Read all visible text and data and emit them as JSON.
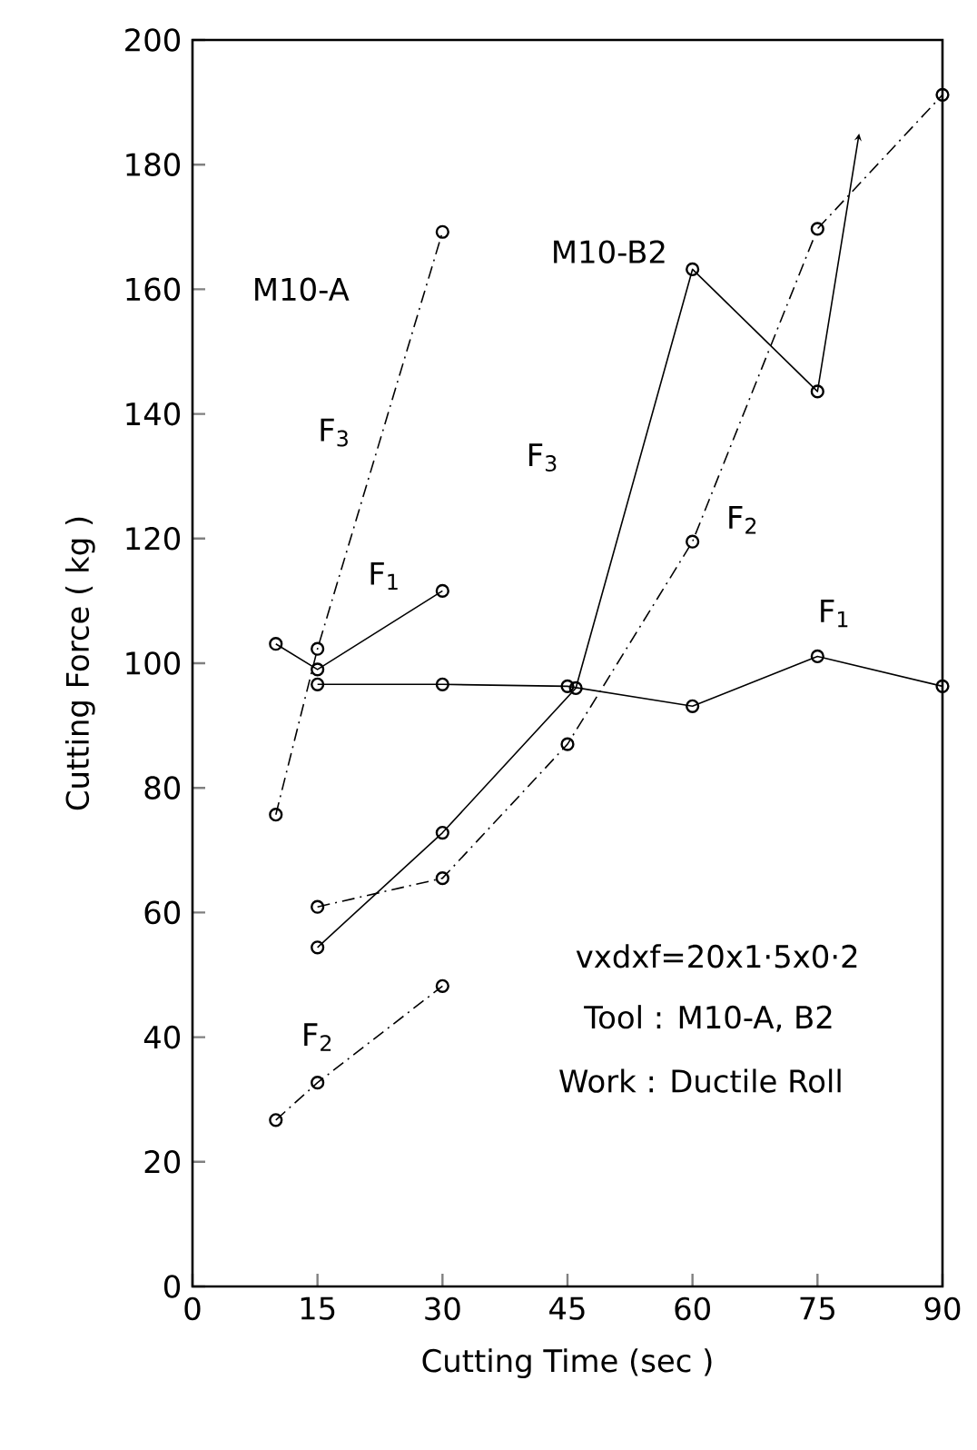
{
  "chart_data": {
    "type": "line",
    "xlabel": "Cutting Time (sec )",
    "ylabel": "Cutting Force ( kg )",
    "xlim": [
      0,
      90
    ],
    "ylim": [
      0,
      200
    ],
    "xticks": [
      0,
      15,
      30,
      45,
      60,
      75,
      90
    ],
    "yticks": [
      0,
      20,
      40,
      60,
      80,
      100,
      120,
      140,
      160,
      180,
      200
    ],
    "grid": false,
    "marker": "circle",
    "series": [
      {
        "name": "F$_{3}$",
        "color": "#000000",
        "line_style": "dashed",
        "x": [
          10,
          15,
          30
        ],
        "values": [
          75.7,
          102.3,
          169.2
        ]
      },
      {
        "name": "F$_{1}$",
        "color": "#000000",
        "line_style": "solid",
        "x": [
          10,
          15,
          30
        ],
        "values": [
          103.1,
          99,
          111.6
        ]
      },
      {
        "name": "F$_{2}$",
        "color": "#000000",
        "line_style": "dashed",
        "x": [
          10,
          15,
          30
        ],
        "values": [
          26.7,
          32.7,
          48.2
        ]
      },
      {
        "name": "F$_{3}$",
        "color": "#000000",
        "line_style": "solid",
        "x": [
          15,
          30,
          46,
          60,
          75,
          80
        ],
        "values": [
          54.4,
          72.8,
          96,
          163.2,
          143.6,
          185
        ]
      },
      {
        "name": "F$_{2}$",
        "color": "#000000",
        "line_style": "dashed",
        "x": [
          15,
          30,
          45,
          60,
          75,
          90
        ],
        "values": [
          60.9,
          65.5,
          87,
          119.5,
          169.7,
          191.2
        ]
      },
      {
        "name": "F$_{1}$",
        "color": "#000000",
        "line_style": "solid",
        "x": [
          15,
          30,
          45,
          60,
          75,
          90
        ],
        "values": [
          96.6,
          96.6,
          96.3,
          93.1,
          101.1,
          96.3
        ]
      }
    ],
    "annotations": [
      "M10-A",
      "M10-B2",
      "vxdxf=20x1·5x0·2",
      "Tool : M10-A, B2",
      "Work : Ductile Roll"
    ]
  }
}
